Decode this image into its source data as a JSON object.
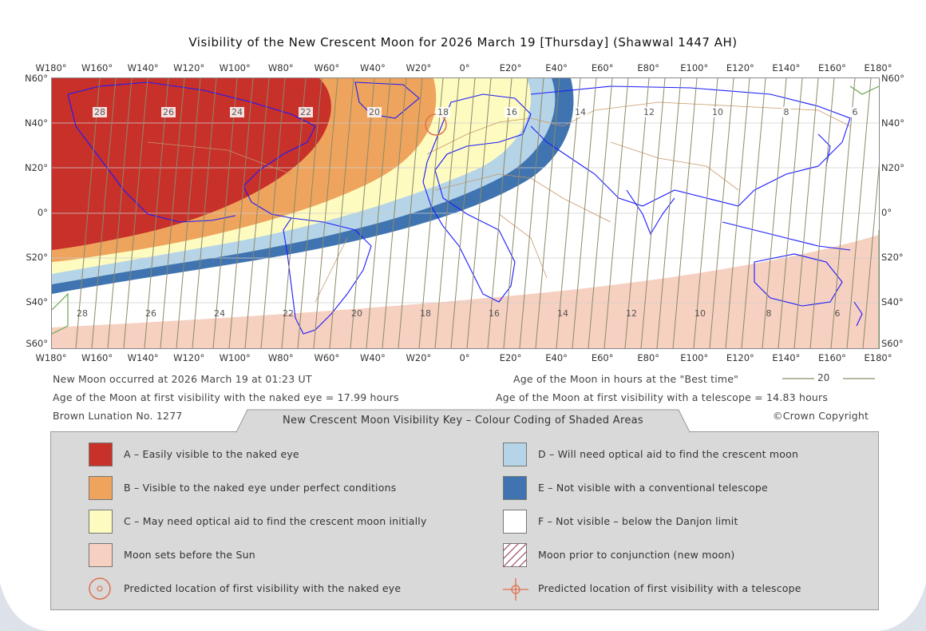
{
  "title": "Visibility of the New Crescent Moon for 2026 March 19 [Thursday] (Shawwal 1447 AH)",
  "longitude_labels": [
    "W180°",
    "W160°",
    "W140°",
    "W120°",
    "W100°",
    "W80°",
    "W60°",
    "W40°",
    "W20°",
    "0°",
    "E20°",
    "E40°",
    "E60°",
    "E80°",
    "E100°",
    "E120°",
    "E140°",
    "E160°",
    "E180°"
  ],
  "latitude_labels": [
    "N60°",
    "N40°",
    "N20°",
    "0°",
    "S20°",
    "S40°",
    "S60°"
  ],
  "age_contour_labels_north": [
    "28",
    "26",
    "24",
    "22",
    "20",
    "18",
    "16",
    "14",
    "12",
    "10",
    "8",
    "6"
  ],
  "age_contour_labels_south": [
    "28",
    "26",
    "24",
    "22",
    "20",
    "18",
    "16",
    "14",
    "12",
    "10",
    "8",
    "6"
  ],
  "info": {
    "new_moon": "New Moon occurred at 2026 March 19 at 01:23 UT",
    "naked_eye_age": "Age of the Moon at first visibility with the naked eye = 17.99 hours",
    "lunation": "Brown Lunation No. 1277",
    "best_time_legend": "Age of the Moon in hours at the \"Best time\"",
    "best_time_sample": "20",
    "telescope_age": "Age of the Moon at first visibility with a telescope = 14.83 hours",
    "copyright": "©Crown Copyright"
  },
  "key": {
    "title": "New Crescent Moon Visibility Key – Colour Coding of Shaded Areas",
    "items": [
      {
        "text": "A – Easily visible to the naked eye",
        "color": "#c8302a"
      },
      {
        "text": "B – Visible to the naked eye under perfect conditions",
        "color": "#eea45c"
      },
      {
        "text": "C – May need optical aid to find the crescent moon initially",
        "color": "#fdfbc0"
      },
      {
        "text": "Moon sets before the Sun",
        "color": "#f6d0c0"
      },
      {
        "text": "Predicted location of first visibility with the naked eye",
        "icon": "target-circle-icon"
      },
      {
        "text": "D – Will need optical aid to find the crescent moon",
        "color": "#b5d4e8"
      },
      {
        "text": "E – Not visible with a conventional telescope",
        "color": "#3f74b0"
      },
      {
        "text": "F – Not visible – below the Danjon limit",
        "color": "#ffffff"
      },
      {
        "text": "Moon prior to conjunction (new moon)",
        "icon": "hatched-square-icon"
      },
      {
        "text": "Predicted location of first visibility with a telescope",
        "icon": "crosshair-icon"
      }
    ]
  },
  "colors": {
    "zone_a": "#c8302a",
    "zone_b": "#eea45c",
    "zone_c": "#fdfbc0",
    "zone_d": "#b5d4e8",
    "zone_e": "#3f74b0",
    "moonset": "#f6d0c0",
    "coast": "#1a1aff",
    "borders": "#c89868",
    "contours": "#8c8a6a"
  }
}
